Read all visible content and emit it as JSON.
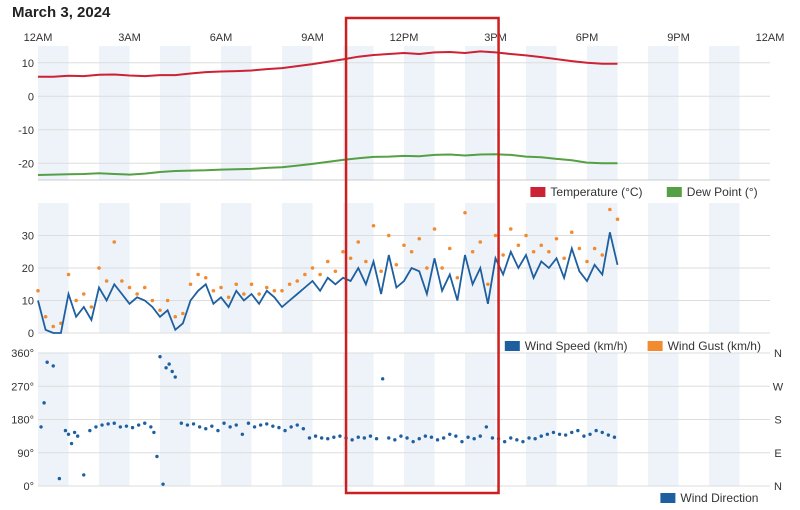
{
  "page": {
    "date_title": "March 3, 2024"
  },
  "colors": {
    "temperature": "#cc2233",
    "dew_point": "#55a045",
    "wind_speed": "#1e5fa0",
    "wind_gust": "#f28a30",
    "wind_direction": "#1e5fa0",
    "band": "#edf3f9",
    "grid": "#dddddd",
    "highlight_box": "#cc1f1f",
    "text": "#333333"
  },
  "time_axis": {
    "ticks": [
      0,
      3,
      6,
      9,
      12,
      15,
      18,
      21,
      24
    ],
    "tick_labels": [
      "12AM",
      "3AM",
      "6AM",
      "9AM",
      "12PM",
      "3PM",
      "6PM",
      "9PM",
      "12AM"
    ],
    "range_hours": [
      0,
      24
    ],
    "shaded_hour_bands": "alternating each hour"
  },
  "highlight": {
    "from_hour": 10.1,
    "to_hour": 15.1
  },
  "chart_data": [
    {
      "type": "line",
      "panel": "temperature-dewpoint",
      "ylim": [
        -25,
        15
      ],
      "yticks": [
        10,
        0,
        -10,
        -20
      ],
      "ytick_labels": [
        "10",
        "0",
        "-10",
        "-20"
      ],
      "legend_position": "bottom-right",
      "series": [
        {
          "name": "Temperature (°C)",
          "color_key": "temperature",
          "x": [
            0,
            0.5,
            1,
            1.5,
            2,
            2.5,
            3,
            3.5,
            4,
            4.5,
            5,
            5.5,
            6,
            6.5,
            7,
            7.5,
            8,
            8.5,
            9,
            9.5,
            10,
            10.5,
            11,
            11.5,
            12,
            12.5,
            13,
            13.5,
            14,
            14.5,
            15,
            15.5,
            16,
            16.5,
            17,
            17.5,
            18,
            18.5,
            19
          ],
          "y": [
            5.8,
            5.8,
            6.1,
            6,
            6.4,
            6.5,
            6.2,
            6,
            6.3,
            6.3,
            6.8,
            7.2,
            7.4,
            7.5,
            7.7,
            8.1,
            8.4,
            9,
            9.6,
            10.3,
            11,
            11.8,
            12.3,
            12.6,
            12.9,
            12.6,
            13.1,
            13.2,
            12.9,
            13.4,
            13.1,
            12.6,
            12.2,
            11.7,
            11.1,
            10.5,
            10,
            9.7,
            9.7
          ]
        },
        {
          "name": "Dew Point (°)",
          "color_key": "dew_point",
          "x": [
            0,
            0.5,
            1,
            1.5,
            2,
            2.5,
            3,
            3.5,
            4,
            4.5,
            5,
            5.5,
            6,
            6.5,
            7,
            7.5,
            8,
            8.5,
            9,
            9.5,
            10,
            10.5,
            11,
            11.5,
            12,
            12.5,
            13,
            13.5,
            14,
            14.5,
            15,
            15.5,
            16,
            16.5,
            17,
            17.5,
            18,
            18.5,
            19
          ],
          "y": [
            -23.5,
            -23.4,
            -23.3,
            -23.2,
            -23,
            -23.2,
            -23.4,
            -23.1,
            -22.6,
            -22.3,
            -22.2,
            -22.1,
            -21.9,
            -21.8,
            -21.7,
            -21.4,
            -21.2,
            -20.7,
            -20.2,
            -19.6,
            -19,
            -18.5,
            -18.1,
            -18,
            -17.8,
            -17.9,
            -17.5,
            -17.4,
            -17.7,
            -17.4,
            -17.3,
            -17.5,
            -18,
            -18.2,
            -18.7,
            -19.1,
            -19.8,
            -20,
            -20
          ]
        }
      ]
    },
    {
      "type": "line",
      "panel": "wind",
      "ylim": [
        0,
        40
      ],
      "yticks": [
        30,
        20,
        10,
        0
      ],
      "ytick_labels": [
        "30",
        "20",
        "10",
        "0"
      ],
      "legend_position": "bottom-right",
      "series": [
        {
          "name": "Wind Speed (km/h)",
          "color_key": "wind_speed",
          "x": [
            0,
            0.25,
            0.5,
            0.75,
            1,
            1.25,
            1.5,
            1.75,
            2,
            2.25,
            2.5,
            2.75,
            3,
            3.25,
            3.5,
            3.75,
            4,
            4.25,
            4.5,
            4.75,
            5,
            5.25,
            5.5,
            5.75,
            6,
            6.25,
            6.5,
            6.75,
            7,
            7.25,
            7.5,
            7.75,
            8,
            8.25,
            8.5,
            8.75,
            9,
            9.25,
            9.5,
            9.75,
            10,
            10.25,
            10.5,
            10.75,
            11,
            11.25,
            11.5,
            11.75,
            12,
            12.25,
            12.5,
            12.75,
            13,
            13.25,
            13.5,
            13.75,
            14,
            14.25,
            14.5,
            14.75,
            15,
            15.25,
            15.5,
            15.75,
            16,
            16.25,
            16.5,
            16.75,
            17,
            17.25,
            17.5,
            17.75,
            18,
            18.25,
            18.5,
            18.75,
            19
          ],
          "y": [
            10,
            1,
            0,
            0,
            12,
            5,
            8,
            4,
            14,
            10,
            15,
            12,
            9,
            11,
            10,
            8,
            5,
            7,
            1,
            3,
            10,
            13,
            15,
            9,
            11,
            8,
            13,
            10,
            12,
            9,
            13,
            11,
            8,
            10,
            12,
            14,
            16,
            13,
            17,
            15,
            17,
            16,
            20,
            15,
            22,
            12,
            24,
            14,
            16,
            20,
            19,
            12,
            23,
            13,
            18,
            10,
            24,
            15,
            20,
            9,
            23,
            18,
            25,
            20,
            24,
            17,
            22,
            20,
            23,
            17,
            26,
            19,
            16,
            21,
            18,
            31,
            21
          ]
        },
        {
          "name": "Wind Gust (km/h)",
          "color_key": "wind_gust",
          "x": [
            0,
            0.25,
            0.5,
            0.75,
            1,
            1.25,
            1.5,
            1.75,
            2,
            2.25,
            2.5,
            2.75,
            3,
            3.25,
            3.5,
            3.75,
            4,
            4.25,
            4.5,
            4.75,
            5,
            5.25,
            5.5,
            5.75,
            6,
            6.25,
            6.5,
            6.75,
            7,
            7.25,
            7.5,
            7.75,
            8,
            8.25,
            8.5,
            8.75,
            9,
            9.25,
            9.5,
            9.75,
            10,
            10.25,
            10.5,
            10.75,
            11,
            11.25,
            11.5,
            11.75,
            12,
            12.25,
            12.5,
            12.75,
            13,
            13.25,
            13.5,
            13.75,
            14,
            14.25,
            14.5,
            14.75,
            15,
            15.25,
            15.5,
            15.75,
            16,
            16.25,
            16.5,
            16.75,
            17,
            17.25,
            17.5,
            17.75,
            18,
            18.25,
            18.5,
            18.75,
            19
          ],
          "y": [
            13,
            5,
            2,
            3,
            18,
            10,
            12,
            8,
            20,
            16,
            28,
            16,
            14,
            12,
            14,
            10,
            7,
            10,
            5,
            6,
            15,
            18,
            17,
            13,
            14,
            11,
            15,
            12,
            15,
            12,
            14,
            13,
            13,
            15,
            16,
            18,
            20,
            18,
            22,
            19,
            25,
            23,
            28,
            22,
            33,
            19,
            30,
            21,
            27,
            25,
            29,
            20,
            32,
            20,
            26,
            17,
            37,
            25,
            28,
            15,
            30,
            24,
            32,
            27,
            30,
            25,
            27,
            25,
            29,
            23,
            31,
            26,
            22,
            26,
            24,
            38,
            35
          ]
        }
      ]
    },
    {
      "type": "scatter",
      "panel": "wind-direction",
      "ylim": [
        0,
        360
      ],
      "yticks": [
        360,
        270,
        180,
        90,
        0
      ],
      "ytick_labels": [
        "360°",
        "270°",
        "180°",
        "90°",
        "0°"
      ],
      "right_tick_labels": [
        "N",
        "W",
        "S",
        "E",
        "N"
      ],
      "legend_position": "bottom-right",
      "series": [
        {
          "name": "Wind Direction",
          "color_key": "wind_direction",
          "x": [
            0.1,
            0.2,
            0.3,
            0.5,
            0.7,
            0.9,
            1.0,
            1.1,
            1.2,
            1.3,
            1.5,
            1.7,
            1.9,
            2.1,
            2.3,
            2.5,
            2.7,
            2.9,
            3.1,
            3.3,
            3.5,
            3.7,
            3.8,
            3.9,
            4.0,
            4.1,
            4.2,
            4.3,
            4.4,
            4.5,
            4.7,
            4.9,
            5.1,
            5.3,
            5.5,
            5.7,
            5.9,
            6.1,
            6.3,
            6.5,
            6.7,
            6.9,
            7.1,
            7.3,
            7.5,
            7.7,
            7.9,
            8.1,
            8.3,
            8.5,
            8.7,
            8.9,
            9.1,
            9.3,
            9.5,
            9.7,
            9.9,
            10.1,
            10.3,
            10.5,
            10.7,
            10.9,
            11.1,
            11.3,
            11.5,
            11.7,
            11.9,
            12.1,
            12.3,
            12.5,
            12.7,
            12.9,
            13.1,
            13.3,
            13.5,
            13.7,
            13.9,
            14.1,
            14.3,
            14.5,
            14.7,
            14.9,
            15.1,
            15.3,
            15.5,
            15.7,
            15.9,
            16.1,
            16.3,
            16.5,
            16.7,
            16.9,
            17.1,
            17.3,
            17.5,
            17.7,
            17.9,
            18.1,
            18.3,
            18.5,
            18.7,
            18.9
          ],
          "y": [
            160,
            225,
            335,
            325,
            20,
            150,
            140,
            115,
            145,
            135,
            30,
            150,
            160,
            165,
            168,
            170,
            160,
            162,
            158,
            165,
            170,
            160,
            145,
            80,
            350,
            5,
            320,
            330,
            310,
            295,
            170,
            165,
            168,
            160,
            155,
            162,
            150,
            170,
            160,
            165,
            140,
            170,
            160,
            165,
            168,
            162,
            158,
            150,
            160,
            165,
            155,
            130,
            135,
            130,
            128,
            132,
            135,
            130,
            125,
            132,
            130,
            135,
            128,
            290,
            130,
            125,
            135,
            130,
            120,
            128,
            135,
            132,
            125,
            130,
            140,
            135,
            120,
            132,
            128,
            135,
            160,
            130,
            128,
            120,
            130,
            125,
            120,
            130,
            128,
            135,
            140,
            145,
            140,
            138,
            145,
            150,
            135,
            140,
            150,
            145,
            138,
            132
          ]
        }
      ]
    }
  ]
}
